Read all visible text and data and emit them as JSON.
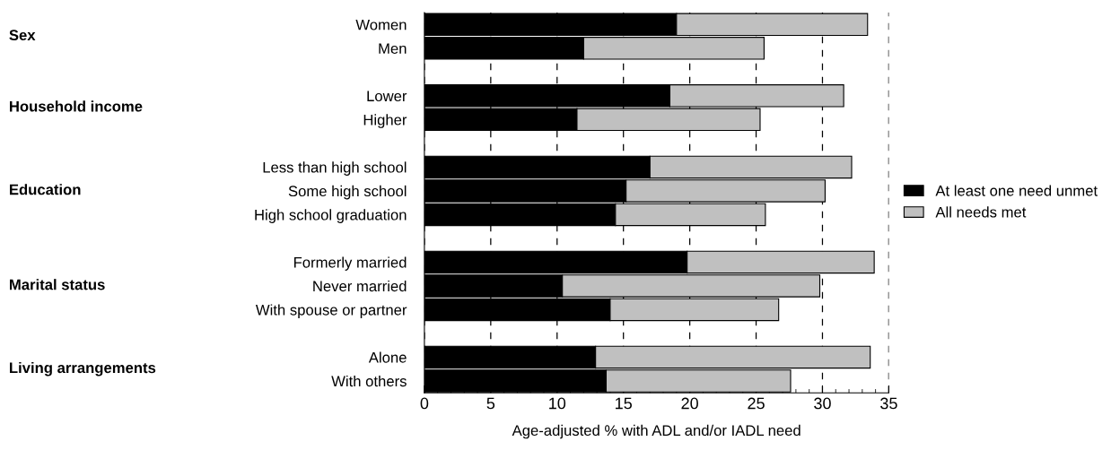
{
  "chart_data": {
    "type": "bar",
    "orientation": "horizontal",
    "stacked": true,
    "categories": [
      "Women",
      "Men",
      null,
      "Lower",
      "Higher",
      null,
      "Less than high school",
      "Some high school",
      "High school graduation",
      null,
      "Formerly married",
      "Never married",
      "With spouse or partner",
      null,
      "Alone",
      "With others"
    ],
    "series": [
      {
        "name": "At least one need unmet",
        "color": "#000000",
        "values": [
          19.0,
          12.0,
          null,
          18.5,
          11.5,
          null,
          17.0,
          15.2,
          14.4,
          null,
          19.8,
          10.4,
          14.0,
          null,
          12.9,
          13.7
        ]
      },
      {
        "name": "All needs met",
        "color": "#c0c0c0",
        "values": [
          14.4,
          13.6,
          null,
          13.1,
          13.8,
          null,
          15.2,
          15.0,
          11.3,
          null,
          14.1,
          19.4,
          12.7,
          null,
          20.7,
          13.9
        ]
      }
    ],
    "annotations": [
      "Sex",
      "Household income",
      "Education",
      "Marital status",
      "Living arrangements"
    ],
    "xlabel": "Age-adjusted % with ADL and/or IADL need",
    "xlim": [
      0,
      35
    ],
    "xticks": [
      0,
      5,
      10,
      15,
      20,
      25,
      30,
      35
    ],
    "grid": "x",
    "legend": "right"
  }
}
